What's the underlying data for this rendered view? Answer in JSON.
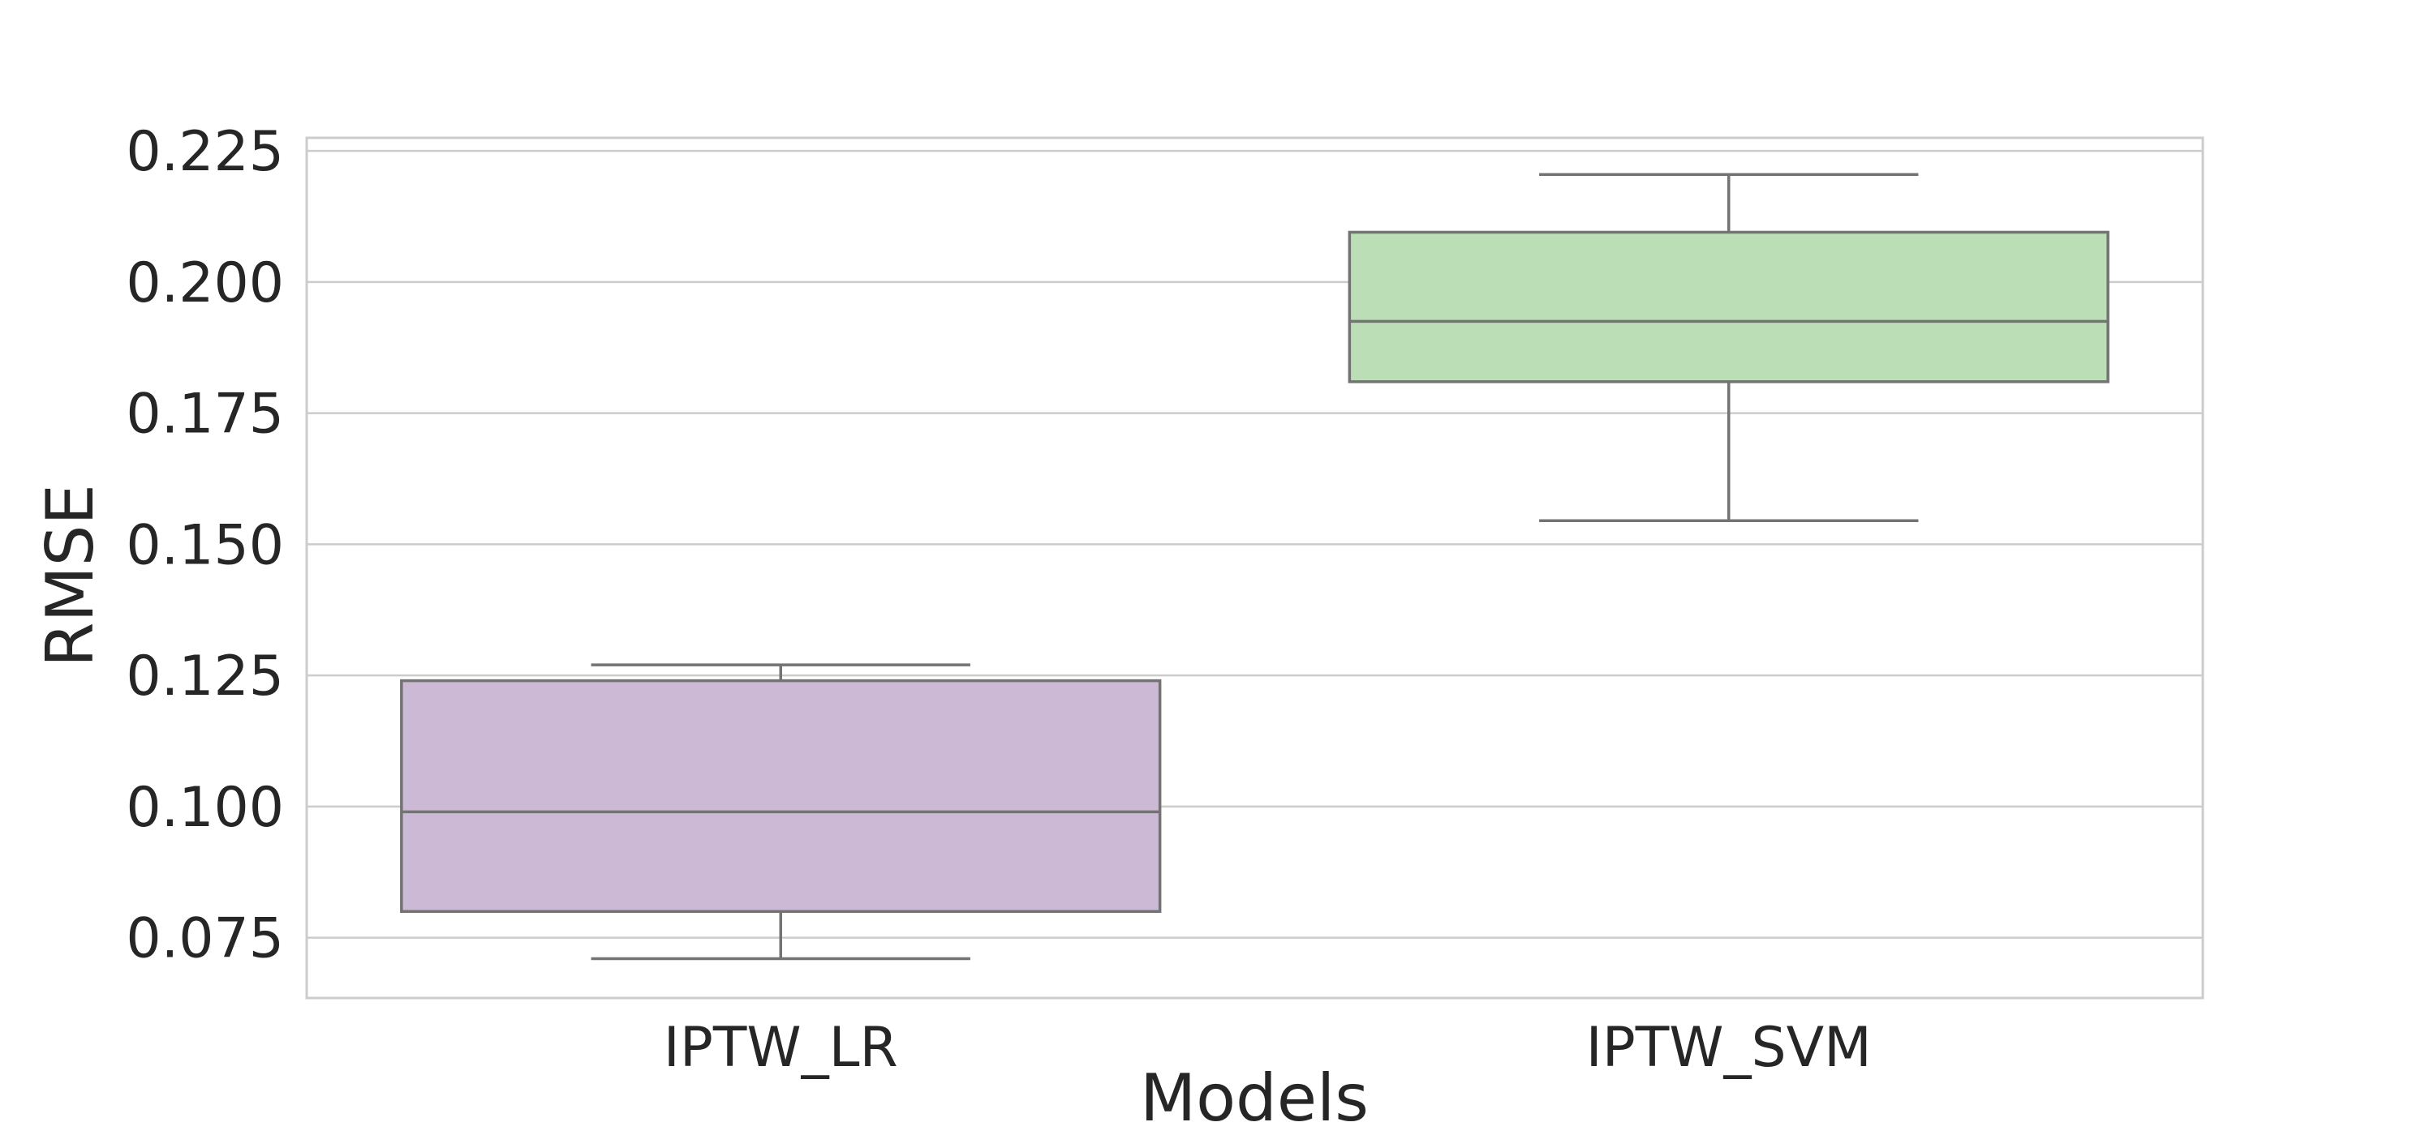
{
  "chart_data": {
    "type": "box",
    "title": "",
    "xlabel": "Models",
    "ylabel": "RMSE",
    "ylim": [
      0.0635,
      0.2275
    ],
    "yticks": [
      0.075,
      0.1,
      0.125,
      0.15,
      0.175,
      0.2,
      0.225
    ],
    "ytick_labels": [
      "0.075",
      "0.100",
      "0.125",
      "0.150",
      "0.175",
      "0.200",
      "0.225"
    ],
    "grid": true,
    "legend": "none",
    "categories": [
      "IPTW_LR",
      "IPTW_SVM"
    ],
    "boxes": [
      {
        "category": "IPTW_LR",
        "whisker_low": 0.071,
        "q1": 0.08,
        "median": 0.099,
        "q3": 0.124,
        "whisker_high": 0.127,
        "color": "#cbb9d5"
      },
      {
        "category": "IPTW_SVM",
        "whisker_low": 0.1545,
        "q1": 0.181,
        "median": 0.1925,
        "q3": 0.2095,
        "whisker_high": 0.2205,
        "color": "#bcdeb7"
      }
    ],
    "colors": {
      "edge": "#737373",
      "grid": "#cccccc",
      "text": "#262626"
    }
  }
}
